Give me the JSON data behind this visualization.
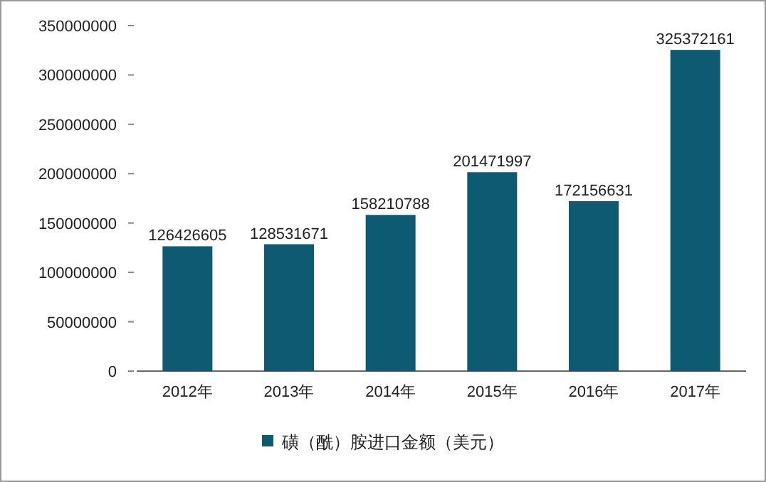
{
  "chart_data": {
    "type": "bar",
    "categories": [
      "2012年",
      "2013年",
      "2014年",
      "2015年",
      "2016年",
      "2017年"
    ],
    "series": [
      {
        "name": "磺（酰）胺进口金额（美元）",
        "color": "#0e5a73",
        "values": [
          126426605,
          128531671,
          158210788,
          201471997,
          172156631,
          325372161
        ]
      }
    ],
    "ylim": [
      0,
      350000000
    ],
    "yticks": [
      0,
      50000000,
      100000000,
      150000000,
      200000000,
      250000000,
      300000000,
      350000000
    ],
    "data_labels": true,
    "legend": "bottom",
    "grid": false
  }
}
